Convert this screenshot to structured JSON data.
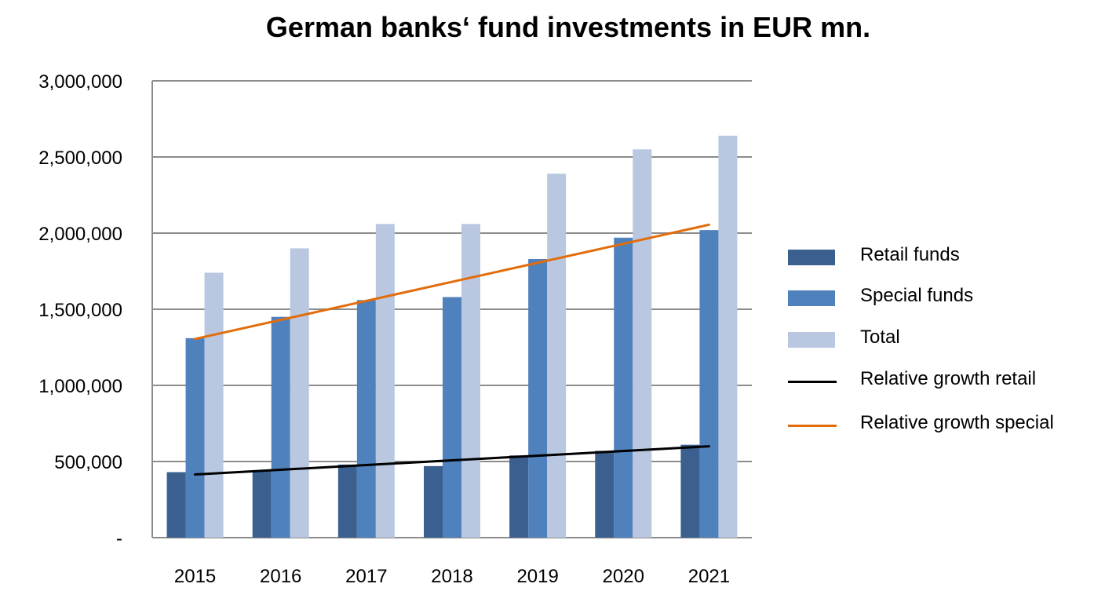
{
  "chart_data": {
    "type": "bar",
    "title": "German banks‘ fund investments in EUR mn.",
    "categories": [
      "2015",
      "2016",
      "2017",
      "2018",
      "2019",
      "2020",
      "2021"
    ],
    "series": [
      {
        "name": "Retail funds",
        "type": "bar",
        "color": "#3b5f8f",
        "values": [
          430000,
          440000,
          480000,
          470000,
          540000,
          570000,
          610000
        ]
      },
      {
        "name": "Special funds",
        "type": "bar",
        "color": "#4f81bd",
        "values": [
          1310000,
          1450000,
          1560000,
          1580000,
          1830000,
          1970000,
          2020000
        ]
      },
      {
        "name": "Total",
        "type": "bar",
        "color": "#b9c8e0",
        "values": [
          1740000,
          1900000,
          2060000,
          2060000,
          2390000,
          2550000,
          2640000
        ]
      },
      {
        "name": "Relative growth retail",
        "type": "line",
        "color": "#000000",
        "values": [
          415000,
          446000,
          477000,
          508000,
          538000,
          569000,
          600000
        ]
      },
      {
        "name": "Relative growth special",
        "type": "line",
        "color": "#e36c0a",
        "values": [
          1305000,
          1430000,
          1555000,
          1680000,
          1805000,
          1930000,
          2055000
        ]
      }
    ],
    "y_ticks": [
      "-",
      "500,000",
      "1,000,000",
      "1,500,000",
      "2,000,000",
      "2,500,000",
      "3,000,000"
    ],
    "ylim": [
      0,
      3000000
    ],
    "grid": true,
    "legend_position": "right"
  }
}
